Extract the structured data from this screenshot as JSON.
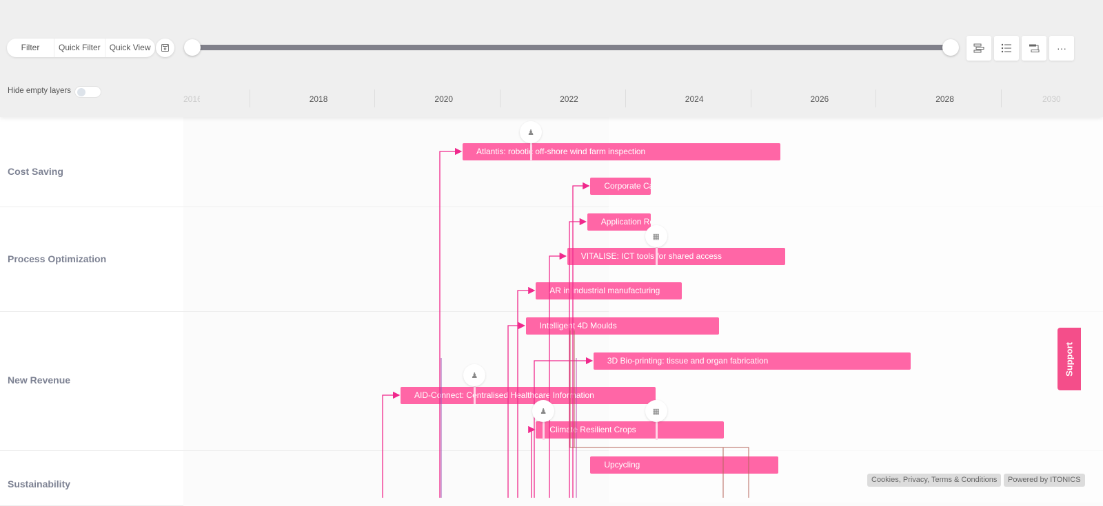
{
  "toolbar": {
    "filter": "Filter",
    "quick_filter": "Quick Filter",
    "quick_view": "Quick View",
    "hide_empty_layers": "Hide empty layers",
    "hide_empty_on": false,
    "more": "···"
  },
  "timeline": {
    "years": [
      "2016",
      "2018",
      "2020",
      "2022",
      "2024",
      "2026",
      "2028",
      "2030"
    ],
    "range_start": 0,
    "range_end": 1
  },
  "layers": [
    {
      "name": "Cost Saving"
    },
    {
      "name": "Process Optimization"
    },
    {
      "name": "New Revenue"
    },
    {
      "name": "Sustainability"
    }
  ],
  "items": [
    {
      "label": "Atlantis: robotic off-shore wind farm inspection",
      "start": 2020.81,
      "end": 2025.88
    },
    {
      "label": "Corporate Ca",
      "start": 2022.85,
      "end": 2023.81
    },
    {
      "label": "Application Re",
      "start": 2022.8,
      "end": 2023.81
    },
    {
      "label": "VITALISE: ICT tools for shared access",
      "start": 2022.48,
      "end": 2025.96
    },
    {
      "label": "AR in industrial manufacturing",
      "start": 2021.98,
      "end": 2024.31
    },
    {
      "label": "Intelligent 4D Moulds",
      "start": 2021.82,
      "end": 2024.9
    },
    {
      "label": "3D Bio-printing: tissue and organ fabrication",
      "start": 2022.9,
      "end": 2027.97
    },
    {
      "label": "AID-Connect: Centralised Healthcare Information",
      "start": 2019.82,
      "end": 2023.89
    },
    {
      "label": "Climate Resilient Crops",
      "start": 2021.98,
      "end": 2024.98
    },
    {
      "label": "Upcycling",
      "start": 2022.85,
      "end": 2025.85
    }
  ],
  "milestones": [
    {
      "icon": "person-icon",
      "year": 2021.9
    },
    {
      "icon": "report-icon",
      "year": 2023.9
    },
    {
      "icon": "person-icon",
      "year": 2021.0
    },
    {
      "icon": "person-icon",
      "year": 2022.1
    },
    {
      "icon": "report-icon",
      "year": 2023.9
    }
  ],
  "support": "Support",
  "footer": {
    "legal": "Cookies, Privacy, Terms & Conditions",
    "powered": "Powered by ITONICS"
  },
  "colors": {
    "bar": "#ff66a6",
    "link": "#f0288c",
    "support": "#f44e8a"
  }
}
